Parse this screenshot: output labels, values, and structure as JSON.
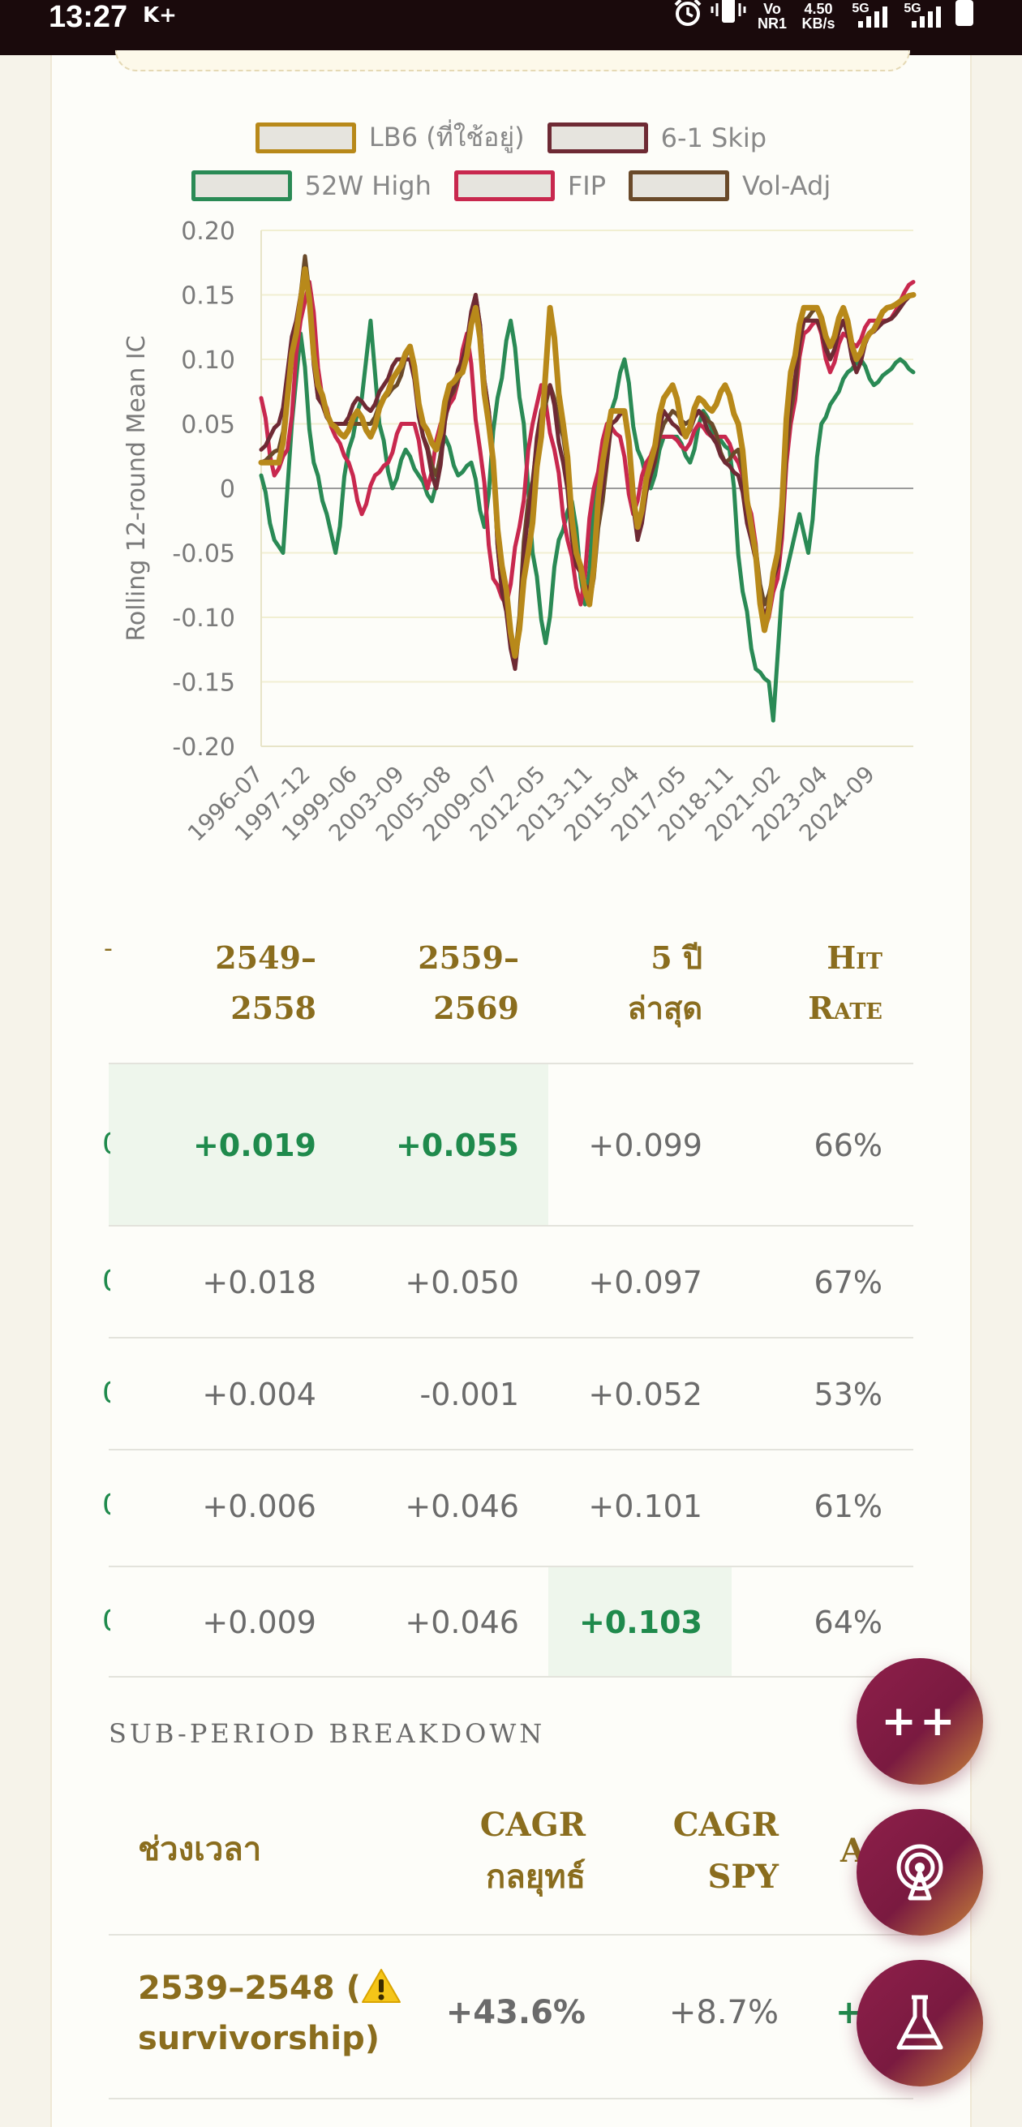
{
  "status_bar": {
    "time": "13:27",
    "carrier_badge": "K+",
    "network1": "Vo NR1",
    "speed": "4.50 KB/s",
    "network2": "5G",
    "network3": "5G"
  },
  "chart_data": {
    "type": "line",
    "title": "",
    "xlabel": "",
    "ylabel": "Rolling 12-round Mean IC",
    "ylim": [
      -0.2,
      0.2
    ],
    "yticks": [
      "0.20",
      "0.15",
      "0.10",
      "0.05",
      "0",
      "-0.05",
      "-0.10",
      "-0.15",
      "-0.20"
    ],
    "ytick_values": [
      0.2,
      0.15,
      0.1,
      0.05,
      0,
      -0.05,
      -0.1,
      -0.15,
      -0.2
    ],
    "xticks": [
      "1996-07",
      "1997-12",
      "1999-06",
      "2003-09",
      "2005-08",
      "2009-07",
      "2012-05",
      "2013-11",
      "2015-04",
      "2017-05",
      "2018-11",
      "2021-02",
      "2023-04",
      "2024-09"
    ],
    "x_count": 150,
    "legend": [
      "LB6 (ที่ใช้อยู่)",
      "6-1 Skip",
      "52W High",
      "FIP",
      "Vol-Adj"
    ],
    "legend_placement": "top",
    "grid": true,
    "colors": {
      "LB6 (ที่ใช้อยู่)": "#b8891a",
      "6-1 Skip": "#6e2a34",
      "52W High": "#2a8a55",
      "FIP": "#c8284e",
      "Vol-Adj": "#6a4a2a"
    },
    "series": [
      {
        "name": "LB6 (ที่ใช้อยู่)",
        "anchors": [
          [
            0,
            0.02
          ],
          [
            4,
            0.02
          ],
          [
            8,
            0.12
          ],
          [
            10,
            0.17
          ],
          [
            13,
            0.08
          ],
          [
            16,
            0.05
          ],
          [
            19,
            0.04
          ],
          [
            22,
            0.06
          ],
          [
            25,
            0.04
          ],
          [
            28,
            0.07
          ],
          [
            31,
            0.09
          ],
          [
            34,
            0.11
          ],
          [
            37,
            0.05
          ],
          [
            40,
            0.03
          ],
          [
            43,
            0.08
          ],
          [
            46,
            0.09
          ],
          [
            49,
            0.14
          ],
          [
            52,
            0.05
          ],
          [
            55,
            -0.06
          ],
          [
            58,
            -0.13
          ],
          [
            61,
            -0.05
          ],
          [
            64,
            0.04
          ],
          [
            66,
            0.14
          ],
          [
            69,
            0.05
          ],
          [
            72,
            -0.05
          ],
          [
            75,
            -0.09
          ],
          [
            78,
            0.02
          ],
          [
            80,
            0.06
          ],
          [
            83,
            0.06
          ],
          [
            86,
            -0.03
          ],
          [
            89,
            0.02
          ],
          [
            92,
            0.07
          ],
          [
            94,
            0.08
          ],
          [
            97,
            0.04
          ],
          [
            100,
            0.07
          ],
          [
            103,
            0.06
          ],
          [
            106,
            0.08
          ],
          [
            109,
            0.05
          ],
          [
            112,
            -0.03
          ],
          [
            115,
            -0.11
          ],
          [
            118,
            -0.05
          ],
          [
            121,
            0.09
          ],
          [
            124,
            0.14
          ],
          [
            127,
            0.14
          ],
          [
            130,
            0.11
          ],
          [
            133,
            0.14
          ],
          [
            136,
            0.1
          ],
          [
            139,
            0.12
          ],
          [
            143,
            0.14
          ],
          [
            149,
            0.15
          ]
        ]
      },
      {
        "name": "6-1 Skip",
        "anchors": [
          [
            0,
            0.03
          ],
          [
            4,
            0.05
          ],
          [
            8,
            0.13
          ],
          [
            10,
            0.17
          ],
          [
            13,
            0.07
          ],
          [
            16,
            0.05
          ],
          [
            19,
            0.05
          ],
          [
            22,
            0.07
          ],
          [
            25,
            0.06
          ],
          [
            28,
            0.08
          ],
          [
            31,
            0.1
          ],
          [
            34,
            0.1
          ],
          [
            37,
            0.04
          ],
          [
            40,
            0.0
          ],
          [
            43,
            0.07
          ],
          [
            46,
            0.1
          ],
          [
            49,
            0.15
          ],
          [
            52,
            0.06
          ],
          [
            55,
            -0.08
          ],
          [
            58,
            -0.14
          ],
          [
            61,
            -0.02
          ],
          [
            64,
            0.06
          ],
          [
            66,
            0.08
          ],
          [
            69,
            0.02
          ],
          [
            72,
            -0.06
          ],
          [
            75,
            -0.08
          ],
          [
            78,
            0.0
          ],
          [
            80,
            0.05
          ],
          [
            83,
            0.06
          ],
          [
            86,
            -0.04
          ],
          [
            89,
            0.01
          ],
          [
            92,
            0.06
          ],
          [
            94,
            0.05
          ],
          [
            97,
            0.04
          ],
          [
            100,
            0.06
          ],
          [
            103,
            0.04
          ],
          [
            106,
            0.02
          ],
          [
            109,
            0.01
          ],
          [
            112,
            -0.04
          ],
          [
            115,
            -0.1
          ],
          [
            118,
            -0.06
          ],
          [
            121,
            0.07
          ],
          [
            124,
            0.13
          ],
          [
            127,
            0.13
          ],
          [
            130,
            0.1
          ],
          [
            133,
            0.13
          ],
          [
            136,
            0.09
          ],
          [
            139,
            0.12
          ],
          [
            143,
            0.13
          ],
          [
            149,
            0.15
          ]
        ]
      },
      {
        "name": "52W High",
        "anchors": [
          [
            0,
            0.01
          ],
          [
            3,
            -0.04
          ],
          [
            5,
            -0.05
          ],
          [
            7,
            0.05
          ],
          [
            9,
            0.12
          ],
          [
            12,
            0.02
          ],
          [
            15,
            -0.02
          ],
          [
            17,
            -0.05
          ],
          [
            20,
            0.03
          ],
          [
            23,
            0.07
          ],
          [
            25,
            0.13
          ],
          [
            27,
            0.05
          ],
          [
            30,
            0.0
          ],
          [
            33,
            0.03
          ],
          [
            36,
            0.01
          ],
          [
            39,
            -0.01
          ],
          [
            42,
            0.04
          ],
          [
            45,
            0.01
          ],
          [
            48,
            0.02
          ],
          [
            51,
            -0.03
          ],
          [
            54,
            0.07
          ],
          [
            57,
            0.13
          ],
          [
            60,
            0.05
          ],
          [
            62,
            -0.05
          ],
          [
            65,
            -0.12
          ],
          [
            68,
            -0.04
          ],
          [
            71,
            -0.01
          ],
          [
            74,
            -0.09
          ],
          [
            77,
            0.01
          ],
          [
            80,
            0.06
          ],
          [
            83,
            0.1
          ],
          [
            86,
            0.03
          ],
          [
            89,
            0.0
          ],
          [
            92,
            0.04
          ],
          [
            95,
            0.04
          ],
          [
            98,
            0.02
          ],
          [
            101,
            0.06
          ],
          [
            104,
            0.04
          ],
          [
            107,
            0.03
          ],
          [
            110,
            -0.08
          ],
          [
            113,
            -0.14
          ],
          [
            116,
            -0.15
          ],
          [
            117,
            -0.18
          ],
          [
            119,
            -0.08
          ],
          [
            121,
            -0.05
          ],
          [
            123,
            -0.02
          ],
          [
            125,
            -0.05
          ],
          [
            128,
            0.05
          ],
          [
            131,
            0.07
          ],
          [
            134,
            0.09
          ],
          [
            137,
            0.1
          ],
          [
            140,
            0.08
          ],
          [
            143,
            0.09
          ],
          [
            146,
            0.1
          ],
          [
            149,
            0.09
          ]
        ]
      },
      {
        "name": "FIP",
        "anchors": [
          [
            0,
            0.07
          ],
          [
            3,
            0.01
          ],
          [
            6,
            0.03
          ],
          [
            9,
            0.13
          ],
          [
            11,
            0.16
          ],
          [
            14,
            0.07
          ],
          [
            17,
            0.04
          ],
          [
            20,
            0.02
          ],
          [
            23,
            -0.02
          ],
          [
            26,
            0.01
          ],
          [
            29,
            0.02
          ],
          [
            32,
            0.05
          ],
          [
            35,
            0.05
          ],
          [
            38,
            0.0
          ],
          [
            41,
            0.05
          ],
          [
            44,
            0.07
          ],
          [
            47,
            0.12
          ],
          [
            50,
            0.03
          ],
          [
            53,
            -0.07
          ],
          [
            56,
            -0.09
          ],
          [
            59,
            -0.03
          ],
          [
            62,
            0.05
          ],
          [
            64,
            0.08
          ],
          [
            67,
            0.03
          ],
          [
            70,
            -0.04
          ],
          [
            73,
            -0.09
          ],
          [
            76,
            0.0
          ],
          [
            79,
            0.05
          ],
          [
            82,
            0.04
          ],
          [
            85,
            -0.02
          ],
          [
            88,
            0.02
          ],
          [
            91,
            0.04
          ],
          [
            94,
            0.04
          ],
          [
            97,
            0.03
          ],
          [
            100,
            0.05
          ],
          [
            103,
            0.04
          ],
          [
            106,
            0.04
          ],
          [
            109,
            0.02
          ],
          [
            112,
            -0.02
          ],
          [
            115,
            -0.11
          ],
          [
            118,
            -0.07
          ],
          [
            121,
            0.05
          ],
          [
            124,
            0.12
          ],
          [
            127,
            0.13
          ],
          [
            130,
            0.09
          ],
          [
            133,
            0.12
          ],
          [
            136,
            0.11
          ],
          [
            139,
            0.13
          ],
          [
            143,
            0.13
          ],
          [
            149,
            0.16
          ]
        ]
      },
      {
        "name": "Vol-Adj",
        "anchors": [
          [
            0,
            0.02
          ],
          [
            4,
            0.03
          ],
          [
            8,
            0.12
          ],
          [
            10,
            0.18
          ],
          [
            13,
            0.07
          ],
          [
            16,
            0.05
          ],
          [
            19,
            0.05
          ],
          [
            22,
            0.05
          ],
          [
            25,
            0.05
          ],
          [
            28,
            0.07
          ],
          [
            31,
            0.08
          ],
          [
            34,
            0.11
          ],
          [
            37,
            0.04
          ],
          [
            40,
            0.01
          ],
          [
            43,
            0.07
          ],
          [
            46,
            0.09
          ],
          [
            49,
            0.15
          ],
          [
            52,
            0.06
          ],
          [
            55,
            -0.08
          ],
          [
            58,
            -0.13
          ],
          [
            61,
            -0.01
          ],
          [
            64,
            0.05
          ],
          [
            66,
            0.08
          ],
          [
            69,
            0.04
          ],
          [
            72,
            -0.05
          ],
          [
            75,
            -0.09
          ],
          [
            78,
            -0.01
          ],
          [
            80,
            0.05
          ],
          [
            83,
            0.06
          ],
          [
            86,
            -0.03
          ],
          [
            89,
            0.01
          ],
          [
            92,
            0.05
          ],
          [
            94,
            0.06
          ],
          [
            97,
            0.05
          ],
          [
            100,
            0.06
          ],
          [
            103,
            0.05
          ],
          [
            106,
            0.02
          ],
          [
            109,
            0.03
          ],
          [
            112,
            -0.03
          ],
          [
            115,
            -0.09
          ],
          [
            118,
            -0.06
          ],
          [
            121,
            0.06
          ],
          [
            124,
            0.13
          ],
          [
            127,
            0.14
          ],
          [
            130,
            0.1
          ],
          [
            133,
            0.13
          ],
          [
            136,
            0.1
          ],
          [
            139,
            0.12
          ],
          [
            143,
            0.14
          ],
          [
            149,
            0.15
          ]
        ]
      }
    ]
  },
  "ic_table": {
    "columns": [
      "2549–\n2558",
      "2559–\n2569",
      "5 ปี\nล่าสุด",
      "Hit\nRate"
    ],
    "rows": [
      {
        "cells": [
          "+0.019",
          "+0.055",
          "+0.099",
          "66%"
        ],
        "highlight": [
          0,
          1
        ]
      },
      {
        "cells": [
          "+0.018",
          "+0.050",
          "+0.097",
          "67%"
        ],
        "highlight": []
      },
      {
        "cells": [
          "+0.004",
          "-0.001",
          "+0.052",
          "53%"
        ],
        "highlight": []
      },
      {
        "cells": [
          "+0.006",
          "+0.046",
          "+0.101",
          "61%"
        ],
        "highlight": []
      },
      {
        "cells": [
          "+0.009",
          "+0.046",
          "+0.103",
          "64%"
        ],
        "highlight": [
          2
        ]
      }
    ]
  },
  "sub_period": {
    "title": "SUB-PERIOD BREAKDOWN",
    "col_period": "ช่วงเวลา",
    "col_cagr_strategy": "CAGR\nกลยุทธ์",
    "col_cagr_spy": "CAGR\nSPY",
    "col_alpha_partial": "A",
    "rows": [
      {
        "period": "2539–2548 (",
        "warning_icon": "warning-icon",
        "period_note": "survivorship)",
        "cagr_strategy": "+43.6%",
        "cagr_spy": "+8.7%",
        "alpha_partial": "+"
      }
    ]
  },
  "fabs": {
    "compare_label": "++",
    "radar_icon": "radar-icon",
    "lab_icon": "flask-icon"
  }
}
